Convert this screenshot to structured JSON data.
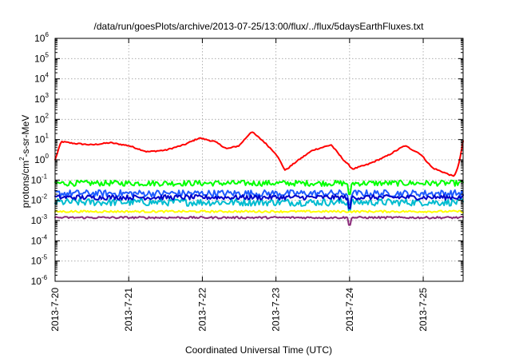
{
  "chart_data": {
    "type": "line",
    "title": "/data/run/goesPlots/archive/2013-07-25/13:00/flux/../flux/5daysEarthFluxes.txt",
    "xlabel": "Coordinated Universal Time (UTC)",
    "ylabel": "protons/cm²-s-sr-MeV",
    "ylabel_parts": {
      "pre": "protons/cm",
      "sup": "2",
      "post": "-s-sr-MeV"
    },
    "y_scale": "log",
    "ylim": [
      1e-06,
      1000000.0
    ],
    "y_ticks": [
      {
        "base": "10",
        "exp": "-6",
        "value": 1e-06
      },
      {
        "base": "10",
        "exp": "-5",
        "value": 1e-05
      },
      {
        "base": "10",
        "exp": "-4",
        "value": 0.0001
      },
      {
        "base": "10",
        "exp": "-3",
        "value": 0.001
      },
      {
        "base": "10",
        "exp": "-2",
        "value": 0.01
      },
      {
        "base": "10",
        "exp": "-1",
        "value": 0.1
      },
      {
        "base": "10",
        "exp": "0",
        "value": 1
      },
      {
        "base": "10",
        "exp": "1",
        "value": 10
      },
      {
        "base": "10",
        "exp": "2",
        "value": 100
      },
      {
        "base": "10",
        "exp": "3",
        "value": 1000
      },
      {
        "base": "10",
        "exp": "4",
        "value": 10000
      },
      {
        "base": "10",
        "exp": "5",
        "value": 100000
      },
      {
        "base": "10",
        "exp": "6",
        "value": 1000000
      }
    ],
    "x_type": "time",
    "xlim": [
      "2013-07-20 00:00",
      "2013-07-25 13:00"
    ],
    "x_ticks": [
      "2013-7-20",
      "2013-7-21",
      "2013-7-22",
      "2013-7-23",
      "2013-7-24",
      "2013-7-25"
    ],
    "grid": true,
    "legend": false,
    "series": [
      {
        "color": "#ff0000",
        "noise": 0.03,
        "points": [
          [
            "2013-07-20 00:00",
            1.0
          ],
          [
            "2013-07-20 02:00",
            8.0
          ],
          [
            "2013-07-20 06:00",
            6.5
          ],
          [
            "2013-07-20 12:00",
            5.5
          ],
          [
            "2013-07-20 18:00",
            7.0
          ],
          [
            "2013-07-21 00:00",
            5.0
          ],
          [
            "2013-07-21 06:00",
            2.5
          ],
          [
            "2013-07-21 12:00",
            3.0
          ],
          [
            "2013-07-21 18:00",
            5.5
          ],
          [
            "2013-07-21 23:00",
            12.0
          ],
          [
            "2013-07-22 04:00",
            8.0
          ],
          [
            "2013-07-22 08:00",
            3.5
          ],
          [
            "2013-07-22 12:00",
            5.0
          ],
          [
            "2013-07-22 16:00",
            25.0
          ],
          [
            "2013-07-22 20:00",
            8.0
          ],
          [
            "2013-07-23 00:00",
            2.0
          ],
          [
            "2013-07-23 03:00",
            0.3
          ],
          [
            "2013-07-23 07:00",
            0.9
          ],
          [
            "2013-07-23 12:00",
            3.0
          ],
          [
            "2013-07-23 18:00",
            5.5
          ],
          [
            "2013-07-23 22:00",
            1.0
          ],
          [
            "2013-07-24 01:00",
            0.35
          ],
          [
            "2013-07-24 06:00",
            0.6
          ],
          [
            "2013-07-24 12:00",
            1.5
          ],
          [
            "2013-07-24 18:00",
            5.0
          ],
          [
            "2013-07-24 23:00",
            2.0
          ],
          [
            "2013-07-25 03:00",
            0.4
          ],
          [
            "2013-07-25 08:00",
            0.2
          ],
          [
            "2013-07-25 10:00",
            0.15
          ],
          [
            "2013-07-25 11:30",
            0.5
          ],
          [
            "2013-07-25 13:00",
            8.0
          ]
        ]
      },
      {
        "color": "#00ff00",
        "base": 0.07,
        "noise": 0.14,
        "dips": [
          [
            "2013-07-24 00:00",
            0.02
          ]
        ]
      },
      {
        "color": "#00bcd0",
        "base": 0.008,
        "noise": 0.18,
        "dips": [
          [
            "2013-07-24 00:00",
            0.003
          ]
        ]
      },
      {
        "color": "#1e5cff",
        "base": 0.022,
        "noise": 0.17,
        "dips": [
          [
            "2013-07-24 00:00",
            0.006
          ]
        ]
      },
      {
        "color": "#0000c8",
        "base": 0.014,
        "noise": 0.12,
        "dips": [
          [
            "2013-07-24 00:00",
            0.004
          ]
        ]
      },
      {
        "color": "#ffff00",
        "base": 0.0028,
        "noise": 0.05,
        "dips": []
      },
      {
        "color": "#8b2a7a",
        "base": 0.0014,
        "noise": 0.05,
        "dips": [
          [
            "2013-07-24 00:00",
            0.0006
          ]
        ]
      }
    ]
  }
}
